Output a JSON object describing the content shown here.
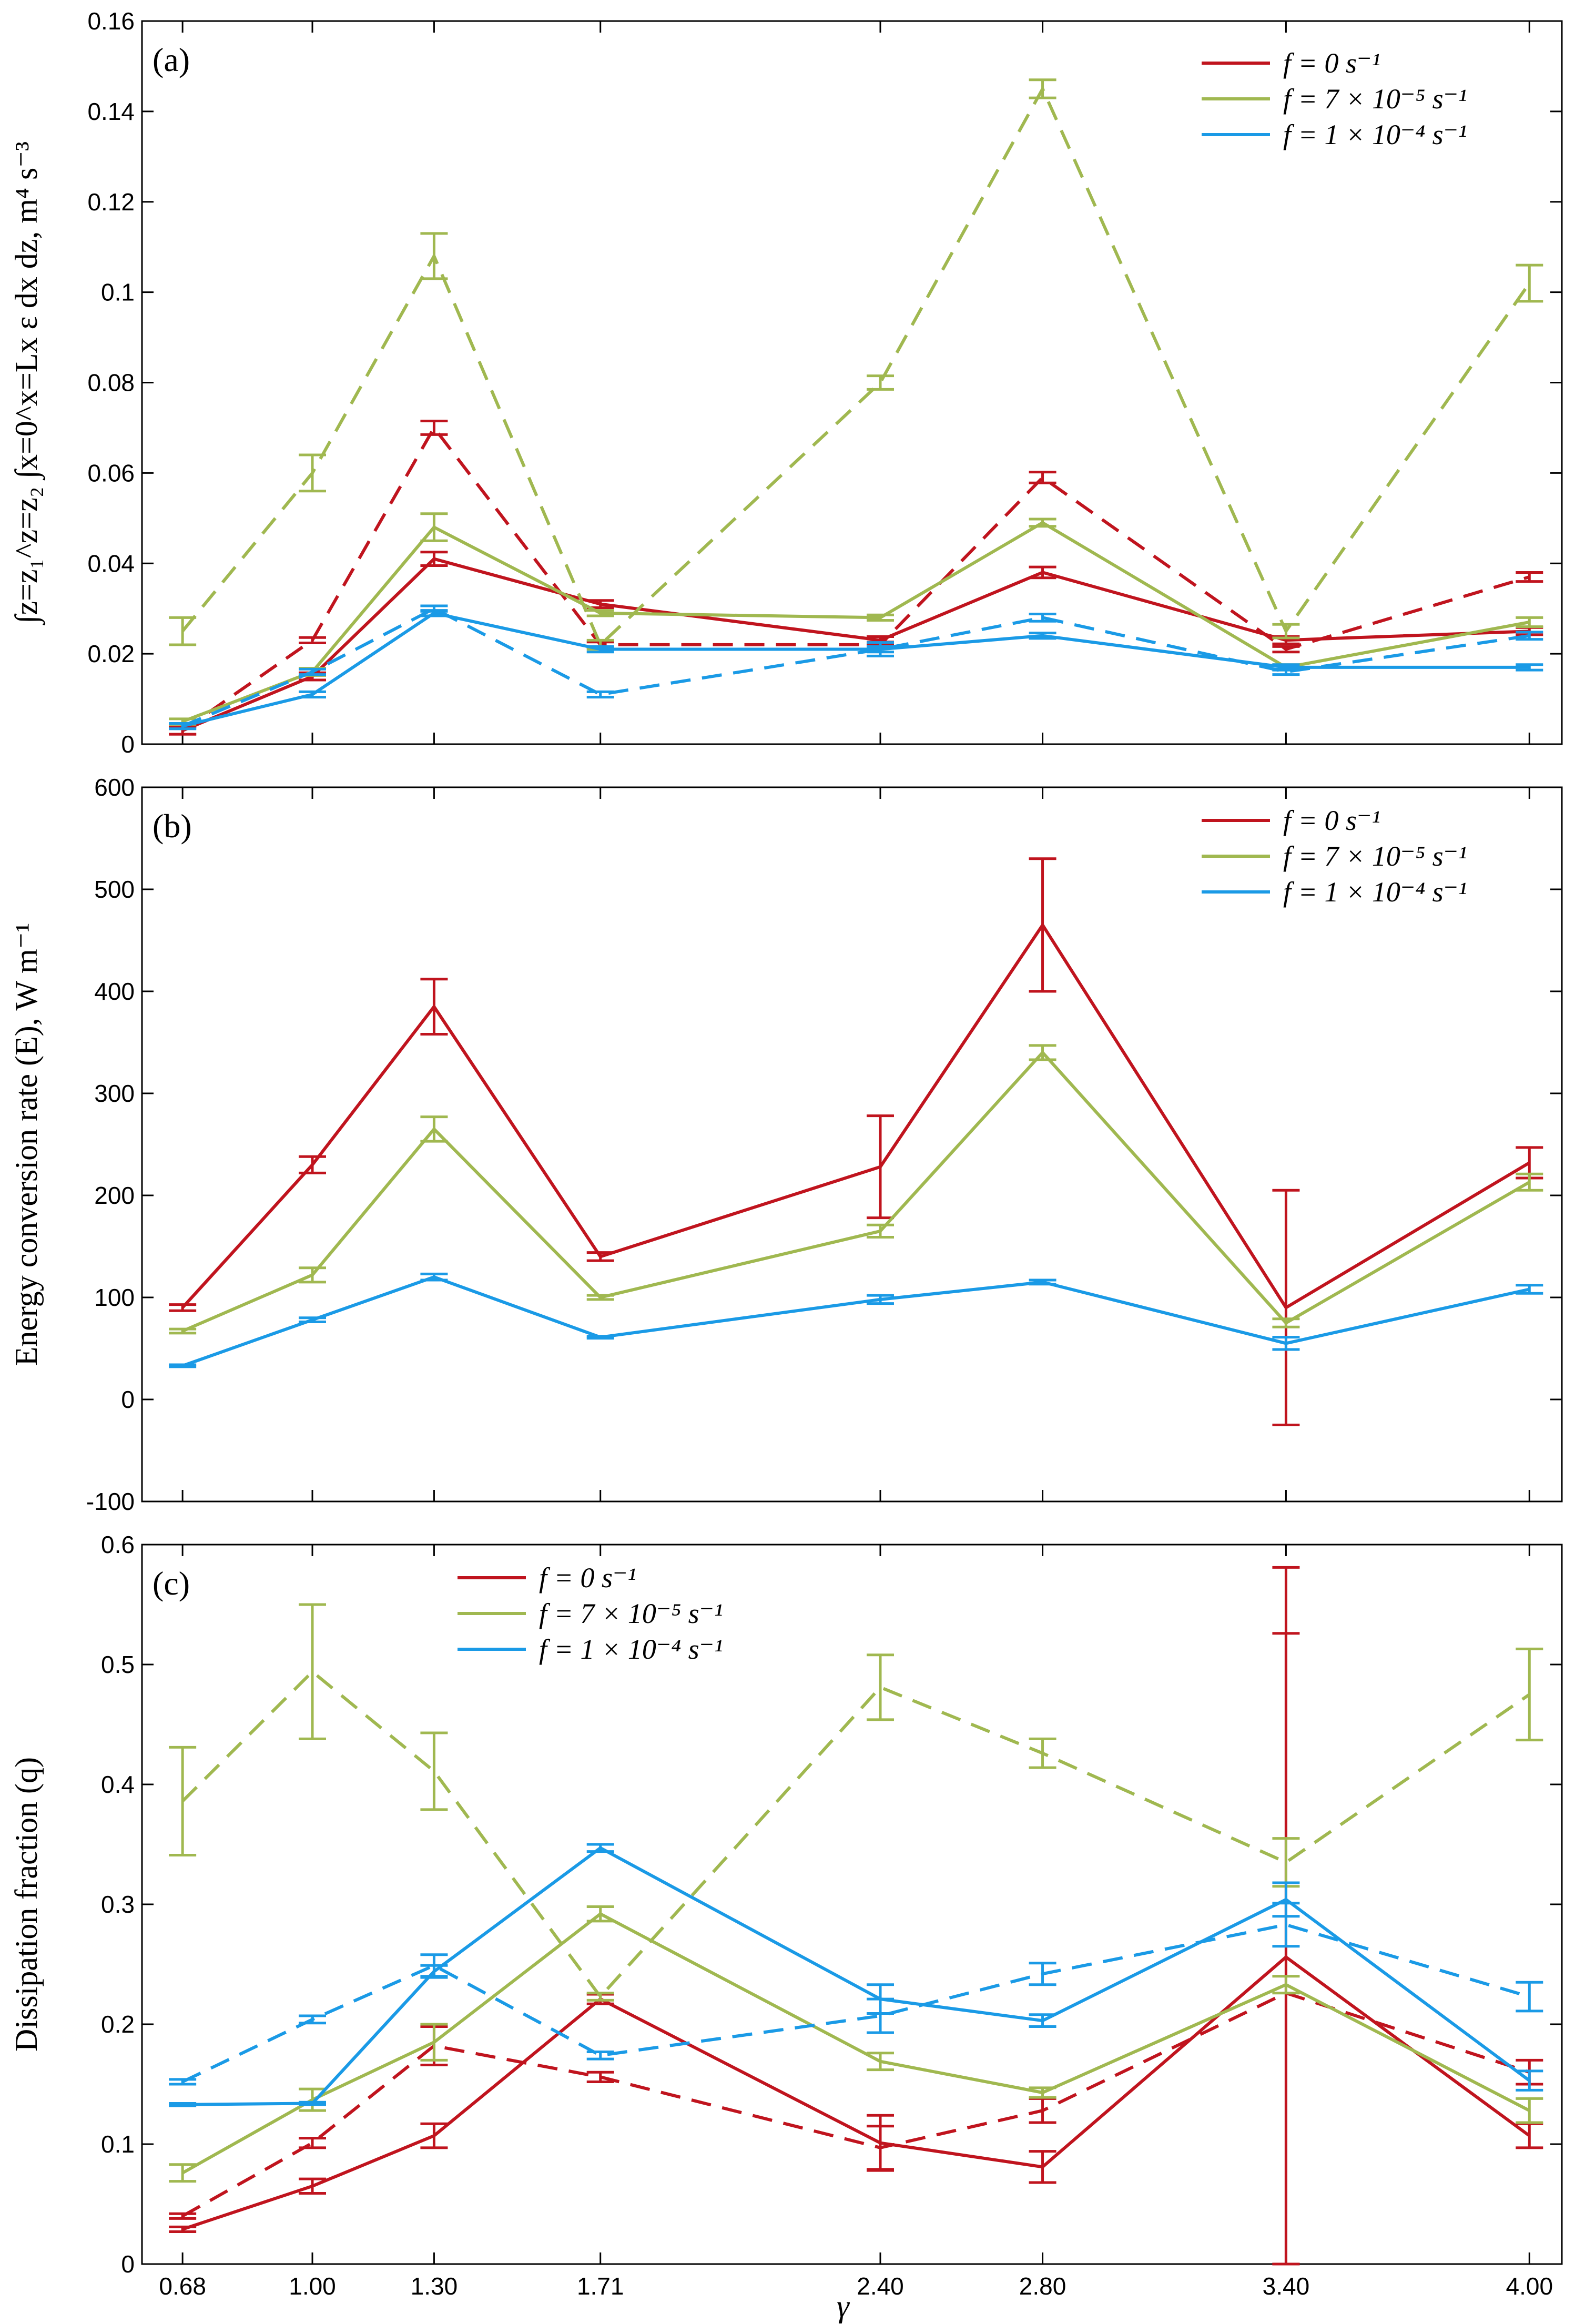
{
  "colors": {
    "red": "#c0141e",
    "green": "#a0b850",
    "blue": "#1a9ae6"
  },
  "x_labels": [
    "0.68",
    "1.00",
    "1.30",
    "1.71",
    "2.40",
    "2.80",
    "3.40",
    "4.00"
  ],
  "xlabel": "γ",
  "chart_data": [
    {
      "type": "line",
      "panel": "(a)",
      "ylabel": "∫z=z₁^z=z₂ ∫x=0^x=Lx ε dx dz, m⁴ s⁻³",
      "ylim": [
        0,
        0.16
      ],
      "yticks": [
        0,
        0.02,
        0.04,
        0.06,
        0.08,
        0.1,
        0.12,
        0.14,
        0.16
      ],
      "ytick_labels": [
        "0",
        "0.02",
        "0.04",
        "0.06",
        "0.08",
        "0.1",
        "0.12",
        "0.14",
        "0.16"
      ],
      "legend": [
        "f = 0 s⁻¹",
        "f = 7 × 10⁻⁵ s⁻¹",
        "f = 1 × 10⁻⁴ s⁻¹"
      ],
      "legend_position": "top-right",
      "x": [
        0.68,
        1.0,
        1.3,
        1.71,
        2.4,
        2.8,
        3.4,
        4.0
      ],
      "series": [
        {
          "name": "f = 0 s⁻¹ (solid)",
          "color": "red",
          "dash": false,
          "values": [
            0.003,
            0.015,
            0.041,
            0.031,
            0.023,
            0.038,
            0.023,
            0.025
          ],
          "errors": [
            0.0008,
            0.0008,
            0.0015,
            0.0008,
            0.0008,
            0.0012,
            0.0008,
            0.0008
          ]
        },
        {
          "name": "f = 0 s⁻¹ (dashed)",
          "color": "red",
          "dash": true,
          "values": [
            0.003,
            0.023,
            0.07,
            0.022,
            0.022,
            0.059,
            0.021,
            0.037
          ],
          "errors": [
            0.0008,
            0.0006,
            0.0015,
            0.0006,
            0.0006,
            0.0012,
            0.0006,
            0.001
          ]
        },
        {
          "name": "f = 7 × 10⁻⁵ s⁻¹ (solid)",
          "color": "green",
          "dash": false,
          "values": [
            0.005,
            0.016,
            0.048,
            0.029,
            0.028,
            0.049,
            0.017,
            0.027
          ],
          "errors": [
            0.0006,
            0.0008,
            0.003,
            0.0006,
            0.0006,
            0.0008,
            0.0006,
            0.001
          ]
        },
        {
          "name": "f = 7 × 10⁻⁵ s⁻¹ (dashed)",
          "color": "green",
          "dash": true,
          "values": [
            0.025,
            0.06,
            0.108,
            0.022,
            0.08,
            0.145,
            0.025,
            0.102
          ],
          "errors": [
            0.003,
            0.004,
            0.005,
            0.001,
            0.0015,
            0.002,
            0.0015,
            0.004
          ]
        },
        {
          "name": "f = 1 × 10⁻⁴ s⁻¹ (solid)",
          "color": "blue",
          "dash": false,
          "values": [
            0.004,
            0.011,
            0.029,
            0.021,
            0.021,
            0.024,
            0.017,
            0.017
          ],
          "errors": [
            0.0006,
            0.0006,
            0.0006,
            0.0006,
            0.0006,
            0.0006,
            0.0006,
            0.0006
          ]
        },
        {
          "name": "f = 1 × 10⁻⁴ s⁻¹ (dashed)",
          "color": "blue",
          "dash": true,
          "values": [
            0.004,
            0.016,
            0.03,
            0.011,
            0.021,
            0.028,
            0.016,
            0.024
          ],
          "errors": [
            0.0006,
            0.0006,
            0.0006,
            0.0006,
            0.0015,
            0.0008,
            0.0006,
            0.0008
          ]
        }
      ]
    },
    {
      "type": "line",
      "panel": "(b)",
      "ylabel": "Energy conversion rate (E), W m⁻¹",
      "ylim": [
        -100,
        600
      ],
      "yticks": [
        -100,
        0,
        100,
        200,
        300,
        400,
        500,
        600
      ],
      "ytick_labels": [
        "-100",
        "0",
        "100",
        "200",
        "300",
        "400",
        "500",
        "600"
      ],
      "legend": [
        "f = 0 s⁻¹",
        "f = 7 × 10⁻⁵ s⁻¹",
        "f = 1 × 10⁻⁴ s⁻¹"
      ],
      "legend_position": "top-right",
      "x": [
        0.68,
        1.0,
        1.3,
        1.71,
        2.4,
        2.8,
        3.4,
        4.0
      ],
      "series": [
        {
          "name": "f = 0 s⁻¹",
          "color": "red",
          "dash": false,
          "values": [
            90,
            230,
            385,
            140,
            228,
            465,
            90,
            232
          ],
          "errors": [
            3,
            8,
            27,
            4,
            50,
            65,
            115,
            15
          ]
        },
        {
          "name": "f = 7 × 10⁻⁵ s⁻¹",
          "color": "green",
          "dash": false,
          "values": [
            67,
            122,
            265,
            100,
            165,
            340,
            75,
            213
          ],
          "errors": [
            2,
            7,
            12,
            2,
            6,
            7,
            4,
            8
          ]
        },
        {
          "name": "f = 1 × 10⁻⁴ s⁻¹",
          "color": "blue",
          "dash": false,
          "values": [
            33,
            78,
            120,
            61,
            98,
            115,
            55,
            108
          ],
          "errors": [
            1,
            2,
            3,
            1,
            4,
            2,
            6,
            4
          ]
        }
      ]
    },
    {
      "type": "line",
      "panel": "(c)",
      "ylabel": "Dissipation fraction (q)",
      "ylim": [
        0,
        0.6
      ],
      "yticks": [
        0,
        0.1,
        0.2,
        0.3,
        0.4,
        0.5,
        0.6
      ],
      "ytick_labels": [
        "0",
        "0.1",
        "0.2",
        "0.3",
        "0.4",
        "0.5",
        "0.6"
      ],
      "legend": [
        "f = 0 s⁻¹",
        "f = 7 × 10⁻⁵ s⁻¹",
        "f = 1 × 10⁻⁴ s⁻¹"
      ],
      "legend_position": "top-center",
      "x": [
        0.68,
        1.0,
        1.3,
        1.71,
        2.4,
        2.8,
        3.4,
        4.0
      ],
      "series": [
        {
          "name": "f = 0 s⁻¹ (solid)",
          "color": "red",
          "dash": false,
          "values": [
            0.029,
            0.065,
            0.107,
            0.221,
            0.101,
            0.081,
            0.256,
            0.107
          ],
          "errors": [
            0.002,
            0.006,
            0.01,
            0.004,
            0.023,
            0.013,
            0.325,
            0.01
          ]
        },
        {
          "name": "f = 0 s⁻¹ (dashed)",
          "color": "red",
          "dash": true,
          "values": [
            0.04,
            0.101,
            0.182,
            0.156,
            0.097,
            0.128,
            0.226,
            0.16
          ],
          "errors": [
            0.002,
            0.004,
            0.016,
            0.004,
            0.018,
            0.01,
            0.3,
            0.01
          ]
        },
        {
          "name": "f = 7 × 10⁻⁵ s⁻¹ (solid)",
          "color": "green",
          "dash": false,
          "values": [
            0.076,
            0.137,
            0.185,
            0.292,
            0.169,
            0.143,
            0.233,
            0.128
          ],
          "errors": [
            0.007,
            0.009,
            0.015,
            0.006,
            0.007,
            0.004,
            0.007,
            0.01
          ]
        },
        {
          "name": "f = 7 × 10⁻⁵ s⁻¹ (dashed)",
          "color": "green",
          "dash": true,
          "values": [
            0.386,
            0.494,
            0.411,
            0.223,
            0.481,
            0.426,
            0.335,
            0.475
          ],
          "errors": [
            0.045,
            0.056,
            0.032,
            0.003,
            0.027,
            0.012,
            0.02,
            0.038
          ]
        },
        {
          "name": "f = 1 × 10⁻⁴ s⁻¹ (solid)",
          "color": "blue",
          "dash": false,
          "values": [
            0.133,
            0.134,
            0.244,
            0.347,
            0.221,
            0.203,
            0.304,
            0.153
          ],
          "errors": [
            0.001,
            0.001,
            0.005,
            0.003,
            0.012,
            0.005,
            0.014,
            0.008
          ]
        },
        {
          "name": "f = 1 × 10⁻⁴ s⁻¹ (dashed)",
          "color": "blue",
          "dash": true,
          "values": [
            0.152,
            0.204,
            0.249,
            0.174,
            0.207,
            0.242,
            0.283,
            0.223
          ],
          "errors": [
            0.002,
            0.003,
            0.009,
            0.003,
            0.014,
            0.009,
            0.018,
            0.012
          ]
        }
      ]
    }
  ]
}
